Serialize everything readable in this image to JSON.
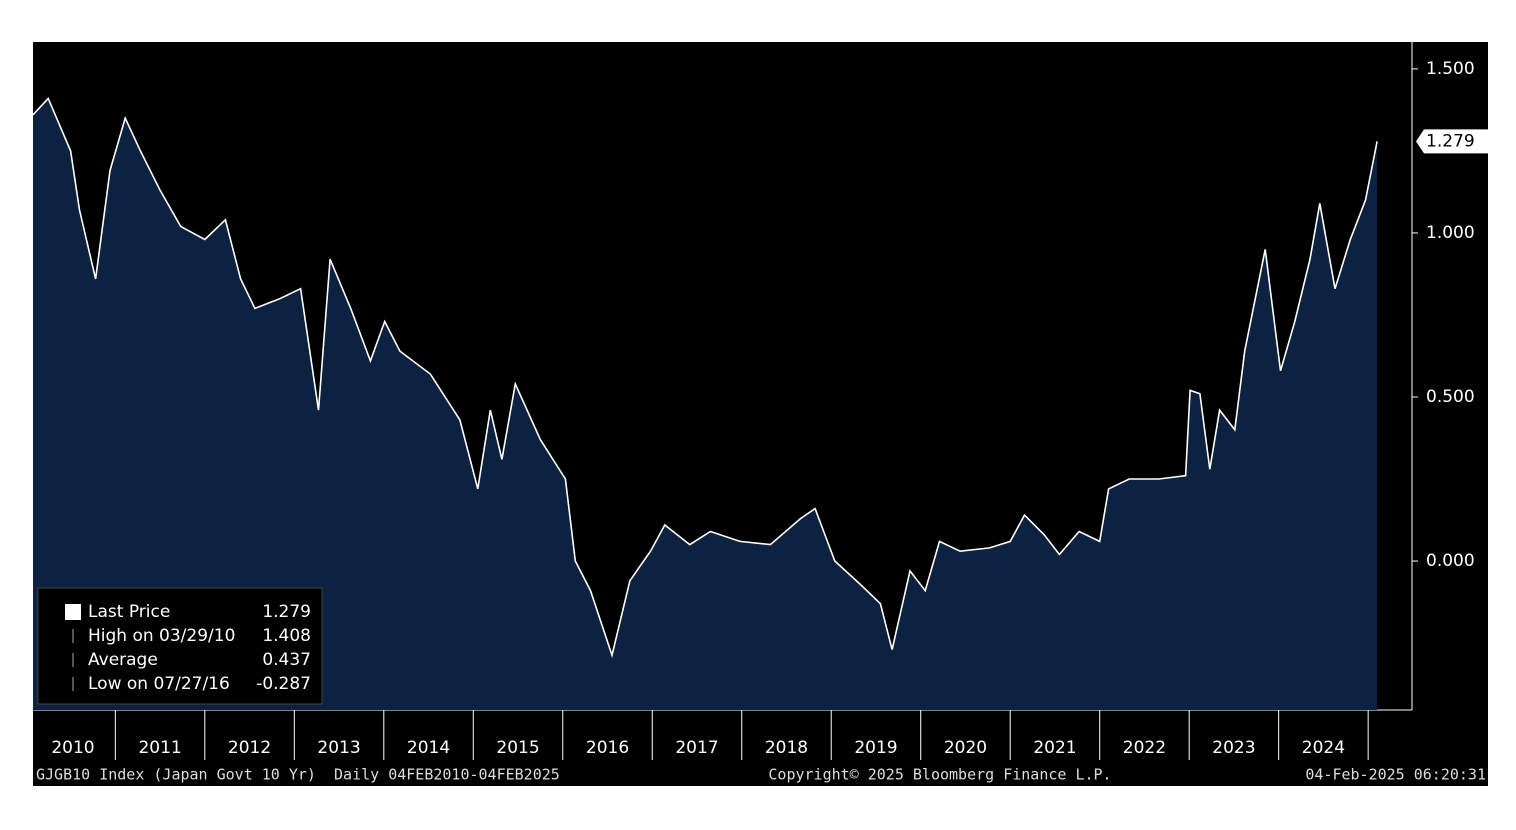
{
  "chart_data": {
    "type": "line",
    "x": [
      2010.08,
      2010.25,
      2010.5,
      2010.6,
      2010.78,
      2010.94,
      2011.11,
      2011.28,
      2011.5,
      2011.73,
      2012.0,
      2012.23,
      2012.4,
      2012.56,
      2012.84,
      2013.07,
      2013.27,
      2013.4,
      2013.63,
      2013.85,
      2014.01,
      2014.18,
      2014.52,
      2014.85,
      2015.05,
      2015.19,
      2015.32,
      2015.47,
      2015.75,
      2016.03,
      2016.14,
      2016.31,
      2016.55,
      2016.75,
      2016.98,
      2017.14,
      2017.42,
      2017.65,
      2017.98,
      2018.32,
      2018.66,
      2018.82,
      2019.04,
      2019.32,
      2019.55,
      2019.68,
      2019.88,
      2020.05,
      2020.21,
      2020.44,
      2020.77,
      2021.0,
      2021.16,
      2021.38,
      2021.55,
      2021.77,
      2022.0,
      2022.1,
      2022.33,
      2022.66,
      2022.96,
      2023.01,
      2023.12,
      2023.23,
      2023.34,
      2023.51,
      2023.62,
      2023.85,
      2024.02,
      2024.18,
      2024.35,
      2024.46,
      2024.63,
      2024.8,
      2024.97,
      2025.1
    ],
    "series": [
      {
        "name": "Last Price",
        "color": "#ffffff",
        "fill": "#0c2240",
        "values": [
          1.36,
          1.41,
          1.25,
          1.07,
          0.86,
          1.19,
          1.35,
          1.25,
          1.13,
          1.02,
          0.98,
          1.04,
          0.86,
          0.77,
          0.8,
          0.83,
          0.46,
          0.92,
          0.77,
          0.61,
          0.73,
          0.64,
          0.57,
          0.43,
          0.22,
          0.46,
          0.31,
          0.54,
          0.37,
          0.25,
          0.0,
          -0.09,
          -0.287,
          -0.06,
          0.03,
          0.11,
          0.05,
          0.09,
          0.06,
          0.05,
          0.13,
          0.16,
          0.0,
          -0.07,
          -0.13,
          -0.27,
          -0.03,
          -0.09,
          0.06,
          0.03,
          0.04,
          0.06,
          0.14,
          0.08,
          0.02,
          0.09,
          0.06,
          0.22,
          0.25,
          0.25,
          0.26,
          0.52,
          0.51,
          0.28,
          0.46,
          0.4,
          0.64,
          0.95,
          0.58,
          0.73,
          0.92,
          1.09,
          0.83,
          0.98,
          1.1,
          1.279
        ]
      }
    ],
    "xlim": [
      2010.08,
      2025.49
    ],
    "xticks": [
      2010,
      2011,
      2012,
      2013,
      2014,
      2015,
      2016,
      2017,
      2018,
      2019,
      2020,
      2021,
      2022,
      2023,
      2024
    ],
    "ylim": [
      -0.454,
      1.582
    ],
    "yticks": [
      {
        "value": 0,
        "label": "0.000"
      },
      {
        "value": 0.5,
        "label": "0.500"
      },
      {
        "value": 1,
        "label": "1.000"
      },
      {
        "value": 1.5,
        "label": "1.500"
      }
    ],
    "last_value": 1.279,
    "stats": [
      {
        "label": "High on 03/29/10",
        "value": 1.408
      },
      {
        "label": "Average",
        "value": 0.437
      },
      {
        "label": "Low on 07/27/16",
        "value": -0.287
      }
    ],
    "footer": {
      "left": "GJGB10 Index (Japan Govt 10 Yr)  Daily 04FEB2010-04FEB2025",
      "center": "Copyright© 2025 Bloomberg Finance L.P.",
      "right": "04-Feb-2025 06:20:31"
    }
  }
}
